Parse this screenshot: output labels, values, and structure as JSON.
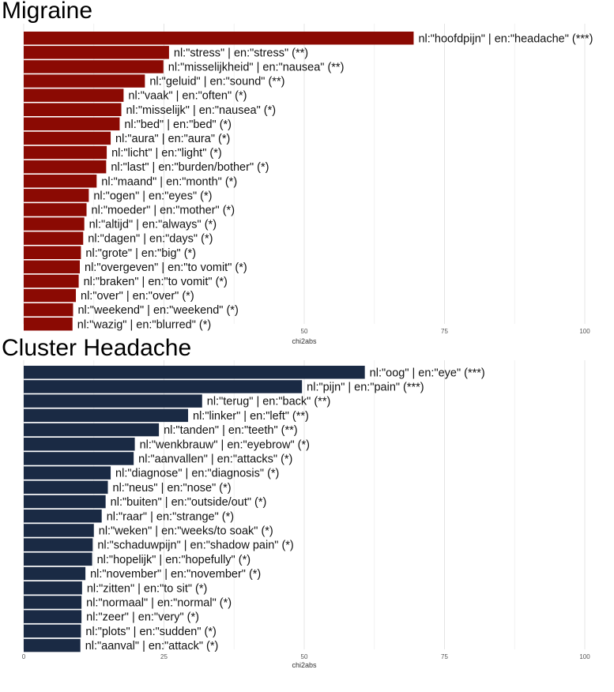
{
  "chart_data": [
    {
      "type": "bar",
      "orientation": "horizontal",
      "title": "Migraine",
      "xlabel": "chi2abs",
      "xlim": [
        0,
        105
      ],
      "xticks": [
        50,
        75,
        100
      ],
      "grid": true,
      "bar_color": "#8B0A03",
      "categories": [
        "nl:\"hoofdpijn\" | en:\"headache\" (***)",
        "nl:\"stress\" | en:\"stress\" (**)",
        "nl:\"misselijkheid\" | en:\"nausea\" (**)",
        "nl:\"geluid\" | en:\"sound\" (**)",
        "nl:\"vaak\" | en:\"often\" (*)",
        "nl:\"misselijk\" | en:\"nausea\" (*)",
        "nl:\"bed\" | en:\"bed\" (*)",
        "nl:\"aura\" | en:\"aura\" (*)",
        "nl:\"licht\" | en:\"light\" (*)",
        "nl:\"last\" | en:\"burden/bother\" (*)",
        "nl:\"maand\" | en:\"month\" (*)",
        "nl:\"ogen\" | en:\"eyes\" (*)",
        "nl:\"moeder\" | en:\"mother\" (*)",
        "nl:\"altijd\" | en:\"always\" (*)",
        "nl:\"dagen\" | en:\"days\" (*)",
        "nl:\"grote\" | en:\"big\" (*)",
        "nl:\"overgeven\" | en:\"to vomit\" (*)",
        "nl:\"braken\" | en:\"to vomit\" (*)",
        "nl:\"over\" | en:\"over\" (*)",
        "nl:\"weekend\" | en:\"weekend\" (*)",
        "nl:\"wazig\" | en:\"blurred\" (*)"
      ],
      "values": [
        69.5,
        25.9,
        24.9,
        21.6,
        17.8,
        17.4,
        17.1,
        15.5,
        14.8,
        14.7,
        13.0,
        11.6,
        11.2,
        10.8,
        10.6,
        10.2,
        10.0,
        9.8,
        9.3,
        8.8,
        8.7
      ]
    },
    {
      "type": "bar",
      "orientation": "horizontal",
      "title": "Cluster Headache",
      "xlabel": "chi2abs",
      "xlim": [
        0,
        105
      ],
      "xticks": [
        0,
        25,
        50,
        75,
        100
      ],
      "grid": true,
      "bar_color": "#1A2A44",
      "categories": [
        "nl:\"oog\" | en:\"eye\" (***)",
        "nl:\"pijn\" | en:\"pain\" (***)",
        "nl:\"terug\" | en:\"back\" (**)",
        "nl:\"linker\" | en:\"left\" (**)",
        "nl:\"tanden\" | en:\"teeth\" (**)",
        "nl:\"wenkbrauw\" | en:\"eyebrow\" (*)",
        "nl:\"aanvallen\" | en:\"attacks\" (*)",
        "nl:\"diagnose\" | en:\"diagnosis\" (*)",
        "nl:\"neus\" | en:\"nose\" (*)",
        "nl:\"buiten\" | en:\"outside/out\" (*)",
        "nl:\"raar\" | en:\"strange\" (*)",
        "nl:\"weken\" | en:\"weeks/to soak\" (*)",
        "nl:\"schaduwpijn\" | en:\"shadow pain\" (*)",
        "nl:\"hopelijk\" | en:\"hopefully\" (*)",
        "nl:\"november\" | en:\"november\" (*)",
        "nl:\"zitten\" | en:\"to sit\" (*)",
        "nl:\"normaal\" | en:\"normal\" (*)",
        "nl:\"zeer\" | en:\"very\" (*)",
        "nl:\"plots\" | en:\"sudden\" (*)",
        "nl:\"aanval\" | en:\"attack\" (*)"
      ],
      "values": [
        60.8,
        49.6,
        31.8,
        29.3,
        24.1,
        19.8,
        19.6,
        15.5,
        15.0,
        14.6,
        13.9,
        12.5,
        12.3,
        12.2,
        11.0,
        10.4,
        10.3,
        10.3,
        10.2,
        10.1
      ]
    }
  ]
}
